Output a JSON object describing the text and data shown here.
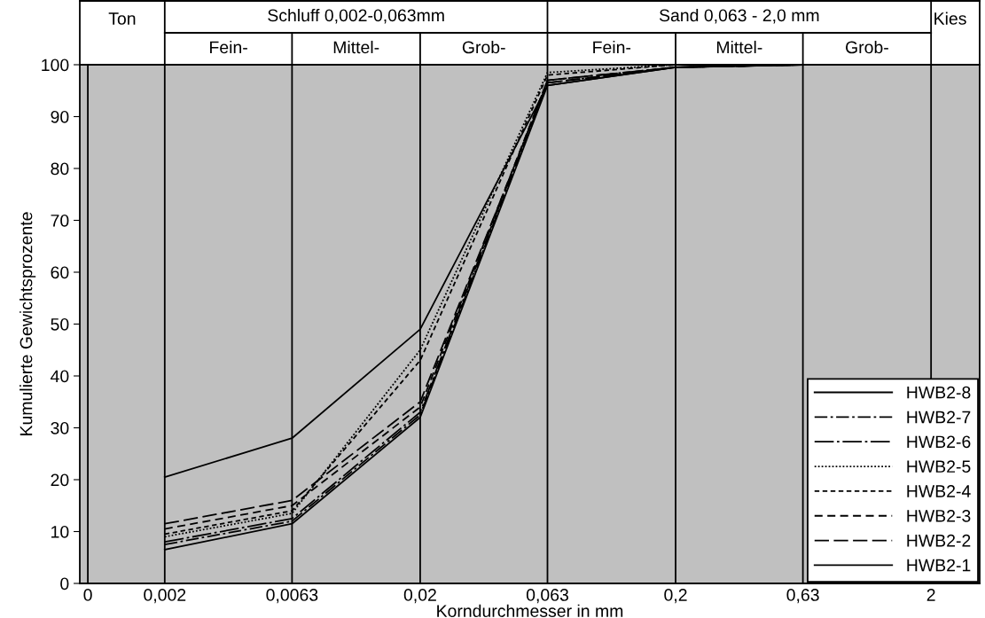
{
  "chart_data": {
    "type": "line",
    "xlabel": "Korndurchmesser in mm",
    "ylabel": "Kumulierte Gewichtsprozente",
    "x": [
      0.002,
      0.0063,
      0.02,
      0.063,
      0.2,
      0.63,
      2
    ],
    "log": "x",
    "xlim": [
      0.00093,
      3.1
    ],
    "ylim": [
      0,
      100
    ],
    "xticks": [
      {
        "value": 0.001,
        "label": "0"
      },
      {
        "value": 0.002,
        "label": "0,002"
      },
      {
        "value": 0.0063,
        "label": "0,0063"
      },
      {
        "value": 0.02,
        "label": "0,02"
      },
      {
        "value": 0.063,
        "label": "0,063"
      },
      {
        "value": 0.2,
        "label": "0,2"
      },
      {
        "value": 0.63,
        "label": "0,63"
      },
      {
        "value": 2,
        "label": "2"
      }
    ],
    "yticks": [
      0,
      10,
      20,
      30,
      40,
      50,
      60,
      70,
      80,
      90,
      100
    ],
    "grid": "x",
    "legend": "bottom right",
    "marker": "none",
    "annotations": [
      "Ton",
      "Schluff 0,002-0,063mm",
      "Sand 0,063 - 2,0 mm",
      "Kies",
      "Fein-",
      "Mittel-",
      "Grob-",
      "Fein-",
      "Mittel-",
      "Grob-"
    ],
    "series": [
      {
        "name": "HWB2-8",
        "color": "#000000",
        "line_style": "solid",
        "values": [
          20.5,
          28,
          49,
          96,
          99.5,
          100,
          100
        ]
      },
      {
        "name": "HWB2-7",
        "color": "#000000",
        "line_style": "dashdot",
        "values": [
          7.5,
          12,
          32.5,
          96.5,
          99.5,
          100,
          100
        ]
      },
      {
        "name": "HWB2-6",
        "color": "#000000",
        "line_style": "longdashdot",
        "values": [
          8,
          12.5,
          33,
          97,
          99.5,
          100,
          100
        ]
      },
      {
        "name": "HWB2-5",
        "color": "#000000",
        "line_style": "dotted",
        "values": [
          9,
          13.5,
          45,
          98.5,
          100,
          100,
          100
        ]
      },
      {
        "name": "HWB2-4",
        "color": "#000000",
        "line_style": "shortdashed",
        "values": [
          9.5,
          14,
          43,
          98,
          100,
          100,
          100
        ]
      },
      {
        "name": "HWB2-3",
        "color": "#000000",
        "line_style": "dashed",
        "values": [
          10.5,
          15,
          34,
          97,
          99.5,
          100,
          100
        ]
      },
      {
        "name": "HWB2-2",
        "color": "#000000",
        "line_style": "longdashed",
        "values": [
          11.5,
          16,
          35,
          96.5,
          99.5,
          100,
          100
        ]
      },
      {
        "name": "HWB2-1",
        "color": "#000000",
        "line_style": "solid",
        "values": [
          6.5,
          11.5,
          32,
          96,
          99.5,
          100,
          100
        ]
      }
    ]
  }
}
